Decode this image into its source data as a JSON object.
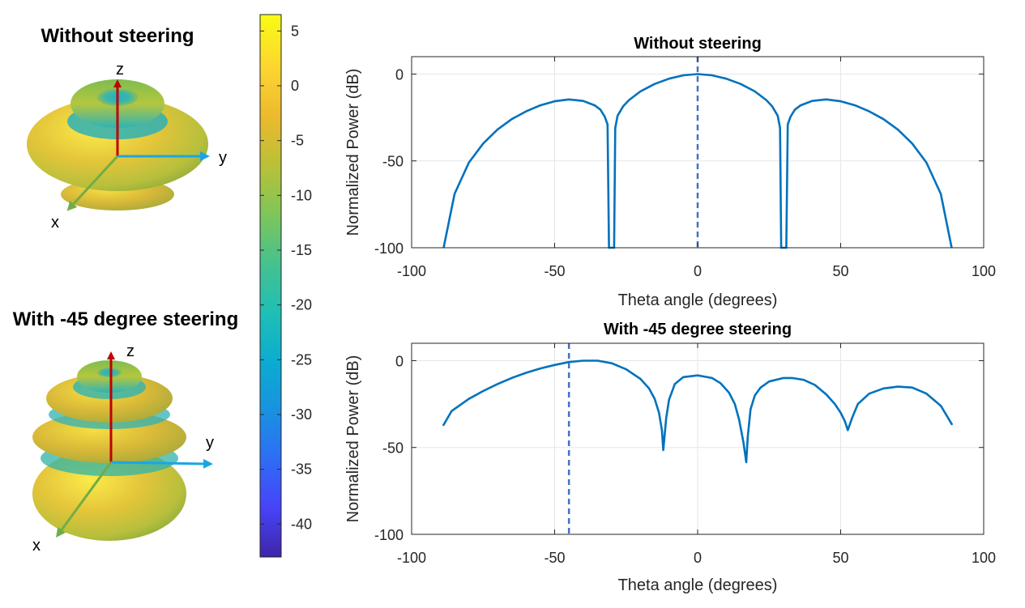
{
  "patterns_3d": [
    {
      "title": "Without steering",
      "axis_labels": {
        "x": "x",
        "y": "y",
        "z": "z"
      }
    },
    {
      "title": "With -45 degree steering",
      "axis_labels": {
        "x": "x",
        "y": "y",
        "z": "z"
      }
    }
  ],
  "colorbar": {
    "ticks": [
      5,
      0,
      -5,
      -10,
      -15,
      -20,
      -25,
      -30,
      -35,
      -40
    ],
    "range": [
      -43,
      6.5
    ],
    "colors": [
      "#3e26a8",
      "#4743f8",
      "#2f6cf6",
      "#1992e0",
      "#0bacd0",
      "#1fbfb6",
      "#45c18f",
      "#7dc65a",
      "#b8c137",
      "#ecb92e",
      "#fcd530",
      "#f9fb15"
    ]
  },
  "chart_data": [
    {
      "type": "line",
      "title": "Without steering",
      "xlabel": "Theta angle (degrees)",
      "ylabel": "Normalized Power (dB)",
      "xlim": [
        -100,
        100
      ],
      "ylim": [
        -100,
        10
      ],
      "xticks": [
        -100,
        -50,
        0,
        50,
        100
      ],
      "yticks": [
        0,
        -50,
        -100
      ],
      "grid": true,
      "line_color": "#0072bd",
      "steer_marker": {
        "x": 0,
        "color": "#4472c4",
        "style": "dashed"
      },
      "series": [
        {
          "x": [
            -88.8,
            -85,
            -80,
            -75,
            -70,
            -65,
            -60,
            -55,
            -50,
            -45,
            -40,
            -36,
            -34,
            -32.5,
            -31.5,
            -31,
            -29.2,
            -28.8,
            -28,
            -26,
            -24,
            -20,
            -15,
            -10,
            -5,
            0,
            5,
            10,
            15,
            20,
            24,
            26,
            28,
            28.8,
            29.2,
            31,
            31.5,
            32.5,
            34,
            36,
            40,
            45,
            50,
            55,
            60,
            65,
            70,
            75,
            80,
            85,
            88.8
          ],
          "y": [
            -100,
            -69,
            -51,
            -40,
            -32,
            -26,
            -21.5,
            -18,
            -15.7,
            -14.6,
            -15.5,
            -18,
            -20.5,
            -24.5,
            -29,
            -100,
            -100,
            -31,
            -24,
            -18.5,
            -15,
            -10,
            -5.7,
            -2.7,
            -0.7,
            0,
            -0.7,
            -2.7,
            -5.7,
            -10,
            -15,
            -18.5,
            -24,
            -31,
            -100,
            -100,
            -29,
            -24.5,
            -20.5,
            -18,
            -15.5,
            -14.6,
            -15.7,
            -18,
            -21.5,
            -26,
            -32,
            -40,
            -51,
            -69,
            -100
          ]
        }
      ]
    },
    {
      "type": "line",
      "title": "With -45 degree steering",
      "xlabel": "Theta angle (degrees)",
      "ylabel": "Normalized Power (dB)",
      "xlim": [
        -100,
        100
      ],
      "ylim": [
        -100,
        10
      ],
      "xticks": [
        -100,
        -50,
        0,
        50,
        100
      ],
      "yticks": [
        0,
        -50,
        -100
      ],
      "grid": true,
      "line_color": "#0072bd",
      "steer_marker": {
        "x": -45,
        "color": "#4472c4",
        "style": "dashed"
      },
      "series": [
        {
          "x": [
            -89,
            -86,
            -80,
            -75,
            -70,
            -65,
            -60,
            -55,
            -50,
            -45,
            -40,
            -35,
            -30,
            -25,
            -20,
            -17,
            -15,
            -13.5,
            -12.5,
            -12,
            -11,
            -10,
            -8,
            -5,
            0,
            5,
            8,
            11,
            13,
            14.5,
            16,
            17,
            17.5,
            18.5,
            20,
            22,
            25,
            30,
            33,
            37,
            41,
            45,
            48,
            50,
            51.5,
            52.5,
            54,
            56,
            60,
            65,
            70,
            75,
            80,
            85,
            89
          ],
          "y": [
            -37.5,
            -29,
            -22,
            -17.5,
            -13.5,
            -10,
            -7,
            -4.5,
            -2.5,
            -0.8,
            0,
            0,
            -1.5,
            -5,
            -10.5,
            -16,
            -22,
            -30,
            -40,
            -51.5,
            -33,
            -22.5,
            -13.5,
            -9.5,
            -8.5,
            -10,
            -13,
            -18.5,
            -25,
            -34,
            -47,
            -58.5,
            -44,
            -28,
            -20,
            -15.5,
            -12,
            -10,
            -10,
            -11,
            -14,
            -19.5,
            -25,
            -30,
            -35,
            -40,
            -33,
            -25,
            -19,
            -16,
            -15,
            -15.5,
            -19,
            -26,
            -37
          ]
        }
      ]
    }
  ]
}
